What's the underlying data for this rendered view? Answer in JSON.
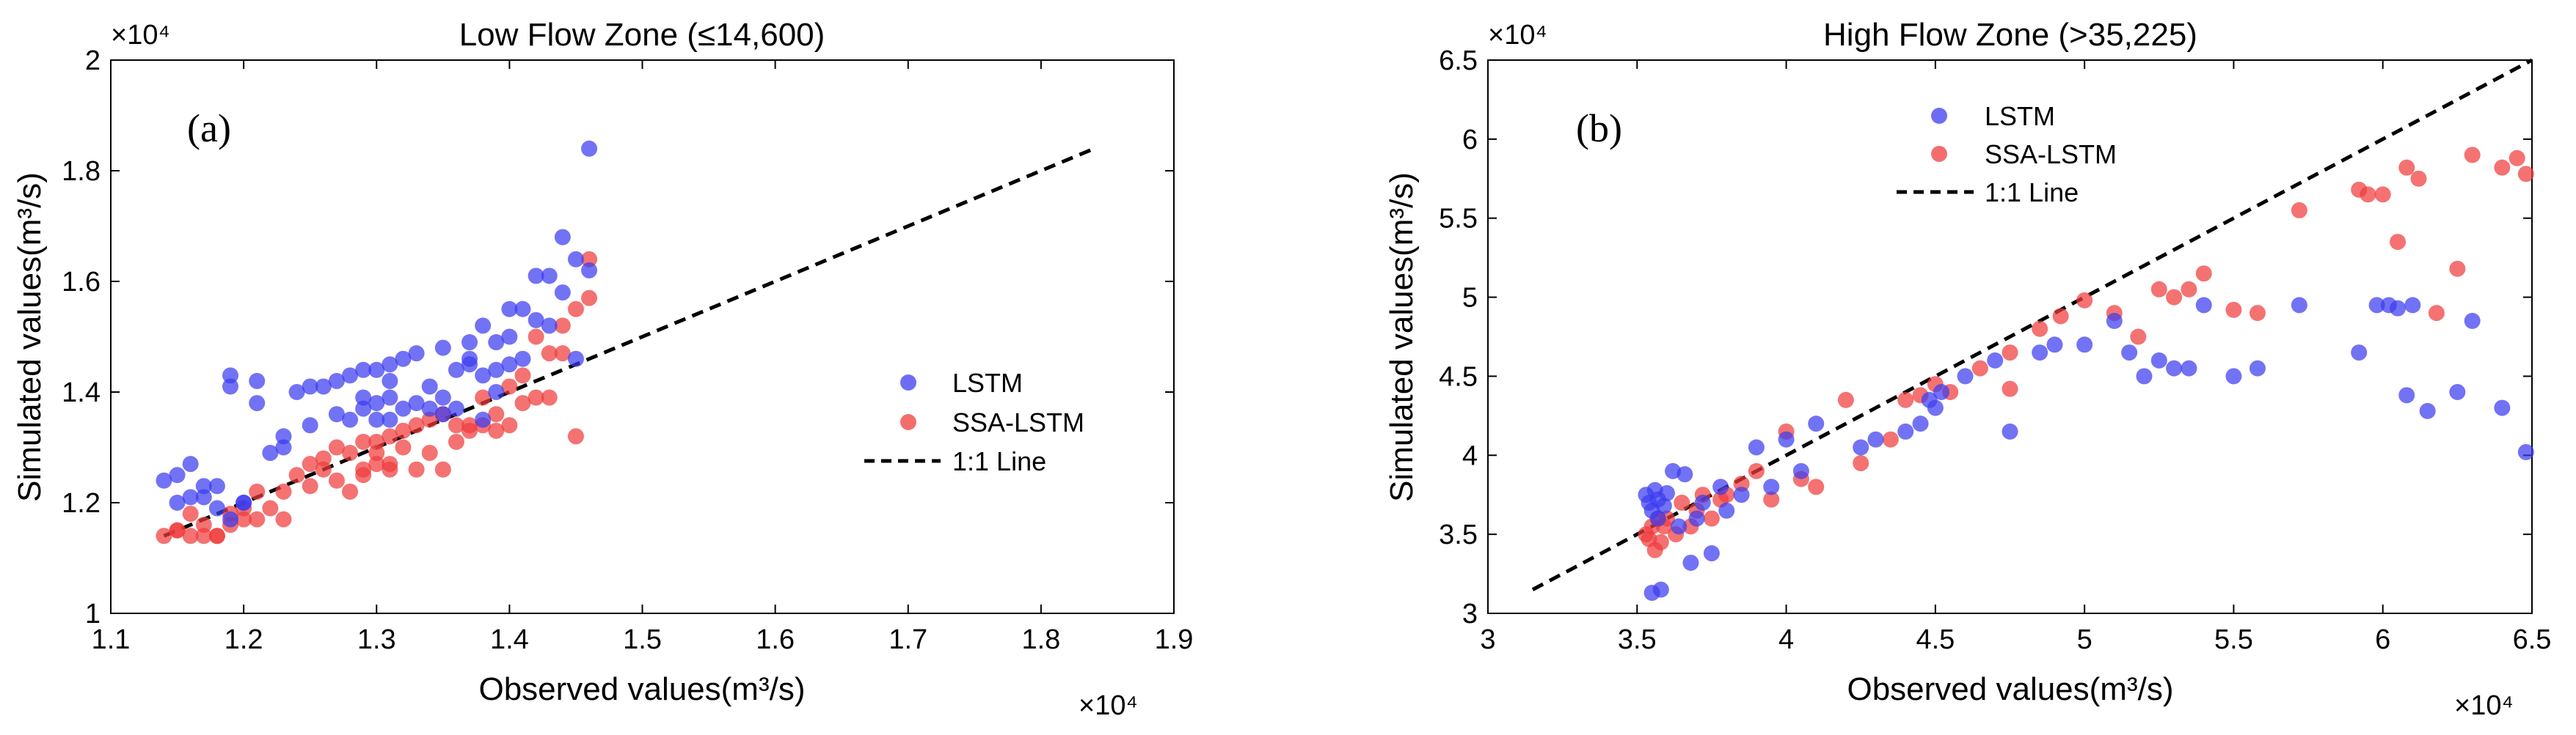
{
  "colors": {
    "lstm": "#3c3cf0",
    "ssa": "#f03c3c",
    "line": "#000000"
  },
  "chart_data": [
    {
      "id": "a",
      "type": "scatter",
      "panel_label": "(a)",
      "title": "Low Flow Zone (≤14,600)",
      "xlabel": "Observed values(m³/s)",
      "ylabel": "Simulated values(m³/s)",
      "x_multiplier": "×10⁴",
      "y_multiplier": "×10⁴",
      "xlim": [
        1.1,
        1.9
      ],
      "ylim": [
        1.0,
        2.0
      ],
      "xticks": [
        1.1,
        1.2,
        1.3,
        1.4,
        1.5,
        1.6,
        1.7,
        1.8,
        1.9
      ],
      "xtick_labels": [
        "1.1",
        "1.2",
        "1.3",
        "1.4",
        "1.5",
        "1.6",
        "1.7",
        "1.8",
        "1.9"
      ],
      "yticks": [
        1.0,
        1.2,
        1.4,
        1.6,
        1.8,
        2.0
      ],
      "ytick_labels": [
        "1",
        "1.2",
        "1.4",
        "1.6",
        "1.8",
        "2"
      ],
      "legend": [
        "LSTM",
        "SSA-LSTM",
        "1:1 Line"
      ],
      "legend_position": "center-right",
      "identity_line": [
        1.14,
        1.84
      ],
      "series": [
        {
          "name": "LSTM",
          "points": [
            [
              1.14,
              1.24
            ],
            [
              1.15,
              1.25
            ],
            [
              1.15,
              1.2
            ],
            [
              1.16,
              1.21
            ],
            [
              1.16,
              1.27
            ],
            [
              1.17,
              1.21
            ],
            [
              1.17,
              1.23
            ],
            [
              1.18,
              1.23
            ],
            [
              1.18,
              1.19
            ],
            [
              1.19,
              1.17
            ],
            [
              1.19,
              1.43
            ],
            [
              1.19,
              1.41
            ],
            [
              1.2,
              1.2
            ],
            [
              1.2,
              1.2
            ],
            [
              1.21,
              1.42
            ],
            [
              1.21,
              1.38
            ],
            [
              1.22,
              1.29
            ],
            [
              1.23,
              1.32
            ],
            [
              1.23,
              1.3
            ],
            [
              1.24,
              1.4
            ],
            [
              1.25,
              1.34
            ],
            [
              1.25,
              1.41
            ],
            [
              1.26,
              1.41
            ],
            [
              1.27,
              1.42
            ],
            [
              1.27,
              1.36
            ],
            [
              1.28,
              1.43
            ],
            [
              1.28,
              1.35
            ],
            [
              1.29,
              1.44
            ],
            [
              1.29,
              1.39
            ],
            [
              1.29,
              1.37
            ],
            [
              1.3,
              1.44
            ],
            [
              1.3,
              1.38
            ],
            [
              1.3,
              1.35
            ],
            [
              1.31,
              1.45
            ],
            [
              1.31,
              1.42
            ],
            [
              1.31,
              1.39
            ],
            [
              1.31,
              1.35
            ],
            [
              1.32,
              1.46
            ],
            [
              1.32,
              1.37
            ],
            [
              1.33,
              1.47
            ],
            [
              1.33,
              1.38
            ],
            [
              1.34,
              1.37
            ],
            [
              1.34,
              1.41
            ],
            [
              1.35,
              1.48
            ],
            [
              1.35,
              1.36
            ],
            [
              1.35,
              1.39
            ],
            [
              1.36,
              1.44
            ],
            [
              1.36,
              1.37
            ],
            [
              1.37,
              1.49
            ],
            [
              1.37,
              1.46
            ],
            [
              1.37,
              1.45
            ],
            [
              1.38,
              1.52
            ],
            [
              1.38,
              1.43
            ],
            [
              1.38,
              1.35
            ],
            [
              1.39,
              1.49
            ],
            [
              1.39,
              1.44
            ],
            [
              1.39,
              1.4
            ],
            [
              1.4,
              1.55
            ],
            [
              1.4,
              1.5
            ],
            [
              1.4,
              1.45
            ],
            [
              1.41,
              1.55
            ],
            [
              1.41,
              1.46
            ],
            [
              1.42,
              1.61
            ],
            [
              1.42,
              1.53
            ],
            [
              1.43,
              1.61
            ],
            [
              1.43,
              1.52
            ],
            [
              1.44,
              1.68
            ],
            [
              1.44,
              1.58
            ],
            [
              1.45,
              1.64
            ],
            [
              1.45,
              1.46
            ],
            [
              1.46,
              1.84
            ],
            [
              1.46,
              1.62
            ]
          ]
        },
        {
          "name": "SSA-LSTM",
          "points": [
            [
              1.14,
              1.14
            ],
            [
              1.15,
              1.15
            ],
            [
              1.15,
              1.15
            ],
            [
              1.16,
              1.14
            ],
            [
              1.16,
              1.18
            ],
            [
              1.17,
              1.14
            ],
            [
              1.17,
              1.16
            ],
            [
              1.18,
              1.14
            ],
            [
              1.18,
              1.14
            ],
            [
              1.19,
              1.18
            ],
            [
              1.19,
              1.16
            ],
            [
              1.2,
              1.17
            ],
            [
              1.2,
              1.19
            ],
            [
              1.21,
              1.22
            ],
            [
              1.21,
              1.17
            ],
            [
              1.22,
              1.19
            ],
            [
              1.23,
              1.17
            ],
            [
              1.23,
              1.22
            ],
            [
              1.24,
              1.25
            ],
            [
              1.25,
              1.27
            ],
            [
              1.25,
              1.23
            ],
            [
              1.26,
              1.28
            ],
            [
              1.26,
              1.26
            ],
            [
              1.27,
              1.3
            ],
            [
              1.27,
              1.24
            ],
            [
              1.28,
              1.29
            ],
            [
              1.28,
              1.22
            ],
            [
              1.29,
              1.31
            ],
            [
              1.29,
              1.26
            ],
            [
              1.29,
              1.25
            ],
            [
              1.3,
              1.31
            ],
            [
              1.3,
              1.27
            ],
            [
              1.3,
              1.29
            ],
            [
              1.31,
              1.27
            ],
            [
              1.31,
              1.32
            ],
            [
              1.31,
              1.26
            ],
            [
              1.32,
              1.33
            ],
            [
              1.32,
              1.3
            ],
            [
              1.33,
              1.34
            ],
            [
              1.33,
              1.26
            ],
            [
              1.34,
              1.35
            ],
            [
              1.34,
              1.29
            ],
            [
              1.35,
              1.26
            ],
            [
              1.35,
              1.36
            ],
            [
              1.36,
              1.34
            ],
            [
              1.36,
              1.31
            ],
            [
              1.37,
              1.33
            ],
            [
              1.37,
              1.34
            ],
            [
              1.38,
              1.34
            ],
            [
              1.38,
              1.39
            ],
            [
              1.39,
              1.36
            ],
            [
              1.39,
              1.33
            ],
            [
              1.4,
              1.41
            ],
            [
              1.4,
              1.34
            ],
            [
              1.41,
              1.38
            ],
            [
              1.41,
              1.43
            ],
            [
              1.42,
              1.5
            ],
            [
              1.42,
              1.39
            ],
            [
              1.43,
              1.47
            ],
            [
              1.43,
              1.39
            ],
            [
              1.44,
              1.52
            ],
            [
              1.44,
              1.47
            ],
            [
              1.45,
              1.55
            ],
            [
              1.45,
              1.32
            ],
            [
              1.46,
              1.64
            ],
            [
              1.46,
              1.57
            ]
          ]
        }
      ]
    },
    {
      "id": "b",
      "type": "scatter",
      "panel_label": "(b)",
      "title": "High Flow Zone (>35,225)",
      "xlabel": "Observed values(m³/s)",
      "ylabel": "Simulated values(m³/s)",
      "x_multiplier": "×10⁴",
      "y_multiplier": "×10⁴",
      "xlim": [
        3.0,
        6.5
      ],
      "ylim": [
        3.0,
        6.5
      ],
      "xticks": [
        3.0,
        3.5,
        4.0,
        4.5,
        5.0,
        5.5,
        6.0,
        6.5
      ],
      "xtick_labels": [
        "3",
        "3.5",
        "4",
        "4.5",
        "5",
        "5.5",
        "6",
        "6.5"
      ],
      "yticks": [
        3.0,
        3.5,
        4.0,
        4.5,
        5.0,
        5.5,
        6.0,
        6.5
      ],
      "ytick_labels": [
        "3",
        "3.5",
        "4",
        "4.5",
        "5",
        "5.5",
        "6",
        "6.5"
      ],
      "legend": [
        "LSTM",
        "SSA-LSTM",
        "1:1 Line"
      ],
      "legend_position": "top-center",
      "identity_line": [
        3.15,
        6.5
      ],
      "series": [
        {
          "name": "LSTM",
          "points": [
            [
              3.53,
              3.75
            ],
            [
              3.54,
              3.7
            ],
            [
              3.55,
              3.65
            ],
            [
              3.55,
              3.13
            ],
            [
              3.56,
              3.78
            ],
            [
              3.57,
              3.72
            ],
            [
              3.57,
              3.6
            ],
            [
              3.58,
              3.15
            ],
            [
              3.59,
              3.68
            ],
            [
              3.6,
              3.76
            ],
            [
              3.62,
              3.9
            ],
            [
              3.64,
              3.55
            ],
            [
              3.66,
              3.88
            ],
            [
              3.68,
              3.32
            ],
            [
              3.7,
              3.6
            ],
            [
              3.72,
              3.7
            ],
            [
              3.75,
              3.38
            ],
            [
              3.78,
              3.8
            ],
            [
              3.8,
              3.65
            ],
            [
              3.85,
              3.75
            ],
            [
              3.9,
              4.05
            ],
            [
              3.95,
              3.8
            ],
            [
              4.0,
              4.1
            ],
            [
              4.05,
              3.9
            ],
            [
              4.1,
              4.2
            ],
            [
              4.25,
              4.05
            ],
            [
              4.3,
              4.1
            ],
            [
              4.4,
              4.15
            ],
            [
              4.45,
              4.2
            ],
            [
              4.48,
              4.35
            ],
            [
              4.5,
              4.3
            ],
            [
              4.52,
              4.4
            ],
            [
              4.6,
              4.5
            ],
            [
              4.7,
              4.6
            ],
            [
              4.75,
              4.15
            ],
            [
              4.85,
              4.65
            ],
            [
              4.9,
              4.7
            ],
            [
              5.0,
              4.7
            ],
            [
              5.1,
              4.85
            ],
            [
              5.15,
              4.65
            ],
            [
              5.2,
              4.5
            ],
            [
              5.25,
              4.6
            ],
            [
              5.3,
              4.55
            ],
            [
              5.35,
              4.55
            ],
            [
              5.4,
              4.95
            ],
            [
              5.5,
              4.5
            ],
            [
              5.58,
              4.55
            ],
            [
              5.72,
              4.95
            ],
            [
              5.92,
              4.65
            ],
            [
              5.98,
              4.95
            ],
            [
              6.02,
              4.95
            ],
            [
              6.05,
              4.93
            ],
            [
              6.08,
              4.38
            ],
            [
              6.1,
              4.95
            ],
            [
              6.15,
              4.28
            ],
            [
              6.25,
              4.4
            ],
            [
              6.3,
              4.85
            ],
            [
              6.4,
              4.3
            ],
            [
              6.48,
              4.02
            ]
          ]
        },
        {
          "name": "SSA-LSTM",
          "points": [
            [
              3.53,
              3.5
            ],
            [
              3.54,
              3.47
            ],
            [
              3.55,
              3.55
            ],
            [
              3.56,
              3.4
            ],
            [
              3.57,
              3.6
            ],
            [
              3.58,
              3.45
            ],
            [
              3.59,
              3.55
            ],
            [
              3.6,
              3.6
            ],
            [
              3.63,
              3.5
            ],
            [
              3.65,
              3.7
            ],
            [
              3.68,
              3.55
            ],
            [
              3.7,
              3.65
            ],
            [
              3.72,
              3.75
            ],
            [
              3.75,
              3.6
            ],
            [
              3.78,
              3.72
            ],
            [
              3.8,
              3.75
            ],
            [
              3.85,
              3.82
            ],
            [
              3.9,
              3.9
            ],
            [
              3.95,
              3.72
            ],
            [
              4.0,
              4.15
            ],
            [
              4.05,
              3.85
            ],
            [
              4.1,
              3.8
            ],
            [
              4.2,
              4.35
            ],
            [
              4.25,
              3.95
            ],
            [
              4.35,
              4.1
            ],
            [
              4.4,
              4.35
            ],
            [
              4.45,
              4.38
            ],
            [
              4.5,
              4.45
            ],
            [
              4.55,
              4.4
            ],
            [
              4.65,
              4.55
            ],
            [
              4.75,
              4.65
            ],
            [
              4.75,
              4.42
            ],
            [
              4.85,
              4.8
            ],
            [
              4.92,
              4.88
            ],
            [
              5.0,
              4.98
            ],
            [
              5.1,
              4.9
            ],
            [
              5.18,
              4.75
            ],
            [
              5.25,
              5.05
            ],
            [
              5.3,
              5.0
            ],
            [
              5.35,
              5.05
            ],
            [
              5.4,
              5.15
            ],
            [
              5.5,
              4.92
            ],
            [
              5.58,
              4.9
            ],
            [
              5.72,
              5.55
            ],
            [
              5.92,
              5.68
            ],
            [
              5.95,
              5.65
            ],
            [
              6.0,
              5.65
            ],
            [
              6.05,
              5.35
            ],
            [
              6.08,
              5.82
            ],
            [
              6.12,
              5.75
            ],
            [
              6.18,
              4.9
            ],
            [
              6.25,
              5.18
            ],
            [
              6.3,
              5.9
            ],
            [
              6.4,
              5.82
            ],
            [
              6.48,
              5.78
            ],
            [
              6.45,
              5.88
            ]
          ]
        }
      ]
    }
  ]
}
